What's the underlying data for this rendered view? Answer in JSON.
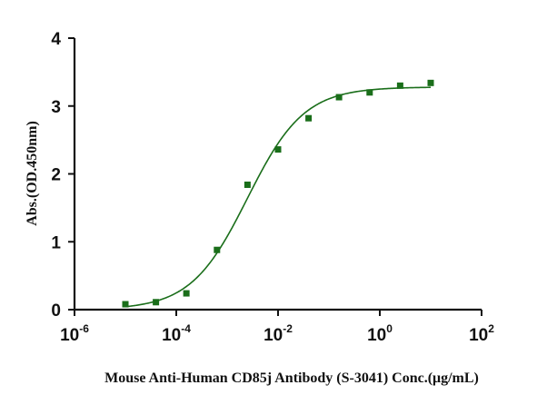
{
  "chart_data": {
    "type": "scatter",
    "xlabel": "Mouse Anti-Human CD85j Antibody (S-3041) Conc.(μg/mL)",
    "ylabel": "Abs.(OD.450nm)",
    "x_scale": "log",
    "xlim": [
      1e-06,
      100
    ],
    "ylim": [
      0,
      4
    ],
    "grid": false,
    "x_ticks": [
      {
        "value": 1e-06,
        "base": "10",
        "exp": "-6"
      },
      {
        "value": 0.0001,
        "base": "10",
        "exp": "-4"
      },
      {
        "value": 0.01,
        "base": "10",
        "exp": "-2"
      },
      {
        "value": 1,
        "base": "10",
        "exp": "0"
      },
      {
        "value": 100,
        "base": "10",
        "exp": "2"
      }
    ],
    "y_ticks": [
      {
        "value": 0,
        "label": "0"
      },
      {
        "value": 1,
        "label": "1"
      },
      {
        "value": 2,
        "label": "2"
      },
      {
        "value": 3,
        "label": "3"
      },
      {
        "value": 4,
        "label": "4"
      }
    ],
    "series": [
      {
        "color": "#1a6e1a",
        "marker": "square",
        "points": [
          {
            "x": 1e-05,
            "y": 0.08
          },
          {
            "x": 3.98e-05,
            "y": 0.11
          },
          {
            "x": 0.000158,
            "y": 0.24
          },
          {
            "x": 0.000631,
            "y": 0.88
          },
          {
            "x": 0.00251,
            "y": 1.84
          },
          {
            "x": 0.01,
            "y": 2.36
          },
          {
            "x": 0.0398,
            "y": 2.82
          },
          {
            "x": 0.158,
            "y": 3.13
          },
          {
            "x": 0.631,
            "y": 3.2
          },
          {
            "x": 2.51,
            "y": 3.3
          },
          {
            "x": 10,
            "y": 3.34
          }
        ],
        "fit": {
          "model": "4PL",
          "bottom": 0.0,
          "top": 3.28,
          "ec50": 0.0025,
          "hill": 0.78
        }
      }
    ]
  }
}
